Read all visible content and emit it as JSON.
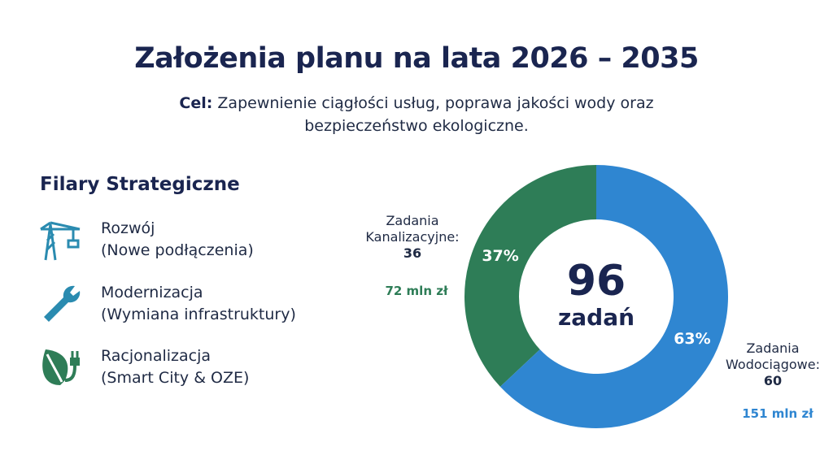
{
  "title": "Założenia planu na lata 2026 – 2035",
  "goal": {
    "label": "Cel:",
    "text": "Zapewnienie ciągłości usług, poprawa jakości wody oraz bezpieczeństwo ekologiczne."
  },
  "pillars": {
    "title": "Filary Strategiczne",
    "items": [
      {
        "name": "Rozwój",
        "detail": "(Nowe podłączenia)"
      },
      {
        "name": "Modernizacja",
        "detail": "(Wymiana infrastruktury)"
      },
      {
        "name": "Racjonalizacja",
        "detail": "(Smart City & OZE)"
      }
    ]
  },
  "chart_data": {
    "type": "donut",
    "center_value": "96",
    "center_label": "zadań",
    "categories": [
      "Zadania Kanalizacyjne:",
      "Zadania Wodociągowe:"
    ],
    "values": [
      37,
      63
    ],
    "value_labels": [
      "37%",
      "63%"
    ],
    "counts": [
      "36",
      "60"
    ],
    "amounts": [
      "72 mln zł",
      "151 mln zł"
    ],
    "colors": [
      "#2e7d57",
      "#2f86d1"
    ]
  }
}
